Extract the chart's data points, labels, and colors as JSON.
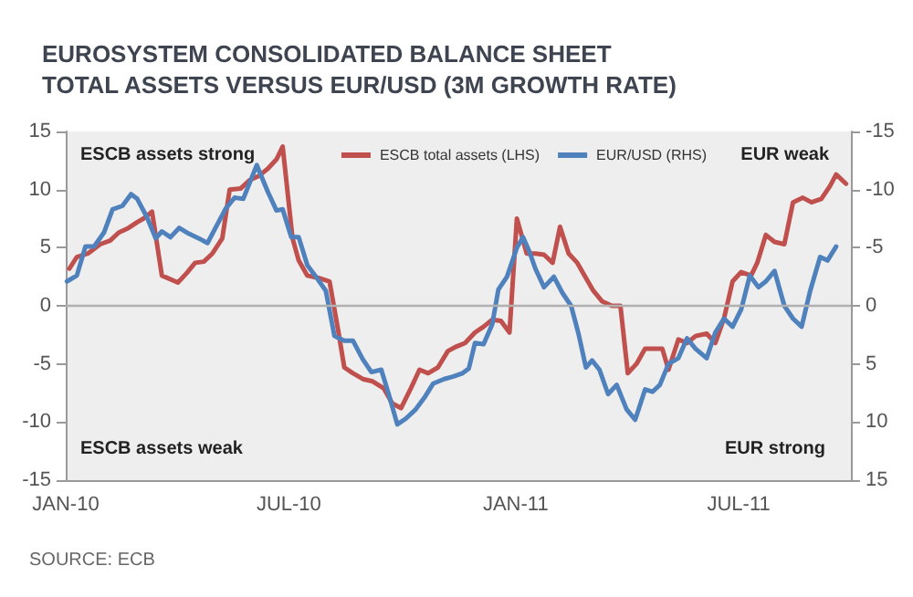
{
  "chart_data": {
    "type": "line",
    "title": "EUROSYSTEM CONSOLIDATED BALANCE SHEET\nTOTAL ASSETS VERSUS EUR/USD (3M GROWTH RATE)",
    "xlim": [
      "2010-01-01",
      "2011-09-30"
    ],
    "xticks": [
      {
        "value": "2010-01-01",
        "label": "JAN-10"
      },
      {
        "value": "2010-07-01",
        "label": "JUL-10"
      },
      {
        "value": "2011-01-01",
        "label": "JAN-11"
      },
      {
        "value": "2011-07-01",
        "label": "JUL-11"
      }
    ],
    "ylim": [
      -15,
      15
    ],
    "yticks": [
      -15,
      -10,
      -5,
      0,
      5,
      10,
      15
    ],
    "y2lim": [
      15,
      -15
    ],
    "y2ticks": [
      -15,
      -10,
      -5,
      0,
      5,
      10,
      15
    ],
    "grid": false,
    "legend": "top",
    "line_style": "solid",
    "marker": "none",
    "ref_lines": [
      {
        "axis": "y",
        "value": 0,
        "color": "#b0b0b0"
      }
    ],
    "annotations": [
      "ESCB assets strong",
      "ESCB assets weak",
      "EUR weak",
      "EUR strong",
      "SOURCE: ECB"
    ],
    "series": [
      {
        "name": "ESCB total assets (LHS)",
        "color": "#c0504d",
        "x": [
          "2010-01-04",
          "2010-01-10",
          "2010-01-19",
          "2010-01-29",
          "2010-02-06",
          "2010-02-13",
          "2010-02-21",
          "2010-02-28",
          "2010-03-05",
          "2010-03-12",
          "2010-03-20",
          "2010-04-02",
          "2010-04-09",
          "2010-04-16",
          "2010-04-23",
          "2010-04-30",
          "2010-05-08",
          "2010-05-14",
          "2010-05-23",
          "2010-05-30",
          "2010-06-07",
          "2010-06-14",
          "2010-06-21",
          "2010-06-26",
          "2010-07-04",
          "2010-07-09",
          "2010-07-16",
          "2010-07-25",
          "2010-08-03",
          "2010-08-10",
          "2010-08-15",
          "2010-08-22",
          "2010-08-30",
          "2010-09-07",
          "2010-09-16",
          "2010-09-23",
          "2010-09-30",
          "2010-10-08",
          "2010-10-15",
          "2010-10-22",
          "2010-10-30",
          "2010-11-07",
          "2010-11-14",
          "2010-11-21",
          "2010-11-29",
          "2010-12-06",
          "2010-12-13",
          "2010-12-20",
          "2010-12-27",
          "2011-01-02",
          "2011-01-10",
          "2011-01-17",
          "2011-01-24",
          "2011-01-31",
          "2011-02-06",
          "2011-02-13",
          "2011-02-20",
          "2011-02-27",
          "2011-03-05",
          "2011-03-12",
          "2011-03-20",
          "2011-03-27",
          "2011-04-02",
          "2011-04-09",
          "2011-04-16",
          "2011-04-23",
          "2011-04-30",
          "2011-05-05",
          "2011-05-13",
          "2011-05-20",
          "2011-05-27",
          "2011-06-05",
          "2011-06-12",
          "2011-06-19",
          "2011-06-26",
          "2011-07-03",
          "2011-07-11",
          "2011-07-16",
          "2011-07-23",
          "2011-07-30",
          "2011-08-07",
          "2011-08-14",
          "2011-08-22",
          "2011-08-29",
          "2011-09-06",
          "2011-09-13",
          "2011-09-18",
          "2011-09-26"
        ],
        "values": [
          3.2,
          4.2,
          4.5,
          5.3,
          5.6,
          6.3,
          6.7,
          7.2,
          7.5,
          8.1,
          2.6,
          2.0,
          2.8,
          3.7,
          3.8,
          4.5,
          5.8,
          10.0,
          10.1,
          10.8,
          11.2,
          11.8,
          12.6,
          13.7,
          5.8,
          3.9,
          2.6,
          2.4,
          2.1,
          -2.1,
          -5.3,
          -5.8,
          -6.3,
          -6.5,
          -7.1,
          -8.4,
          -8.8,
          -7.1,
          -5.5,
          -5.8,
          -5.3,
          -3.9,
          -3.5,
          -3.2,
          -2.3,
          -1.8,
          -1.2,
          -1.3,
          -2.3,
          7.5,
          4.5,
          4.5,
          4.4,
          3.7,
          6.8,
          4.5,
          3.7,
          2.4,
          1.3,
          0.4,
          0,
          0,
          -5.8,
          -5.0,
          -3.7,
          -3.7,
          -3.7,
          -5.5,
          -2.9,
          -3.2,
          -2.6,
          -2.4,
          -3.2,
          -1.1,
          2.1,
          2.9,
          2.6,
          3.7,
          6.1,
          5.5,
          5.3,
          8.9,
          9.3,
          8.9,
          9.2,
          10.3,
          11.3,
          10.5
        ]
      },
      {
        "name": "EUR/USD (RHS)",
        "color": "#4f81bd",
        "axis": "y2",
        "x": [
          "2010-01-02",
          "2010-01-10",
          "2010-01-17",
          "2010-01-24",
          "2010-02-01",
          "2010-02-08",
          "2010-02-16",
          "2010-02-23",
          "2010-02-28",
          "2010-03-08",
          "2010-03-15",
          "2010-03-20",
          "2010-03-27",
          "2010-04-03",
          "2010-04-11",
          "2010-04-19",
          "2010-04-26",
          "2010-05-03",
          "2010-05-11",
          "2010-05-18",
          "2010-05-25",
          "2010-06-05",
          "2010-06-14",
          "2010-06-21",
          "2010-06-26",
          "2010-07-03",
          "2010-07-09",
          "2010-07-16",
          "2010-07-23",
          "2010-07-31",
          "2010-08-07",
          "2010-08-15",
          "2010-08-22",
          "2010-08-30",
          "2010-09-06",
          "2010-09-14",
          "2010-09-20",
          "2010-09-27",
          "2010-10-04",
          "2010-10-12",
          "2010-10-19",
          "2010-10-26",
          "2010-11-04",
          "2010-11-11",
          "2010-11-19",
          "2010-11-24",
          "2010-11-29",
          "2010-12-06",
          "2010-12-13",
          "2010-12-18",
          "2010-12-25",
          "2011-01-02",
          "2011-01-07",
          "2011-01-12",
          "2011-01-17",
          "2011-01-24",
          "2011-02-01",
          "2011-02-08",
          "2011-02-15",
          "2011-02-21",
          "2011-02-27",
          "2011-03-04",
          "2011-03-10",
          "2011-03-17",
          "2011-03-24",
          "2011-04-01",
          "2011-04-08",
          "2011-04-16",
          "2011-04-22",
          "2011-04-28",
          "2011-05-05",
          "2011-05-13",
          "2011-05-20",
          "2011-05-27",
          "2011-06-05",
          "2011-06-12",
          "2011-06-19",
          "2011-06-26",
          "2011-07-03",
          "2011-07-10",
          "2011-07-17",
          "2011-07-23",
          "2011-07-30",
          "2011-08-07",
          "2011-08-14",
          "2011-08-21",
          "2011-08-28",
          "2011-09-05",
          "2011-09-11",
          "2011-09-18"
        ],
        "values": [
          -2.1,
          -2.6,
          -5.1,
          -5.1,
          -6.3,
          -8.3,
          -8.6,
          -9.6,
          -9.2,
          -7.6,
          -5.8,
          -6.4,
          -5.9,
          -6.7,
          -6.2,
          -5.8,
          -5.4,
          -6.8,
          -8.4,
          -9.3,
          -9.2,
          -12.1,
          -9.8,
          -8.2,
          -8.3,
          -5.9,
          -5.9,
          -3.5,
          -2.5,
          -1.3,
          2.6,
          3.0,
          3.0,
          4.6,
          5.7,
          5.5,
          7.6,
          10.2,
          9.7,
          8.9,
          7.9,
          6.7,
          6.3,
          6.1,
          5.8,
          5.4,
          3.2,
          3.3,
          1.6,
          -1.4,
          -2.5,
          -5.0,
          -5.9,
          -4.7,
          -3.2,
          -1.6,
          -2.5,
          -1.1,
          0,
          2.4,
          5.3,
          4.7,
          5.5,
          7.6,
          6.8,
          8.9,
          9.8,
          7.2,
          7.4,
          6.8,
          5.0,
          4.5,
          2.8,
          3.7,
          4.5,
          2.3,
          1.1,
          1.8,
          0.3,
          -2.6,
          -1.6,
          -2.1,
          -3.0,
          0,
          1.1,
          1.8,
          -1.3,
          -4.2,
          -3.9,
          -5.1
        ]
      }
    ]
  }
}
